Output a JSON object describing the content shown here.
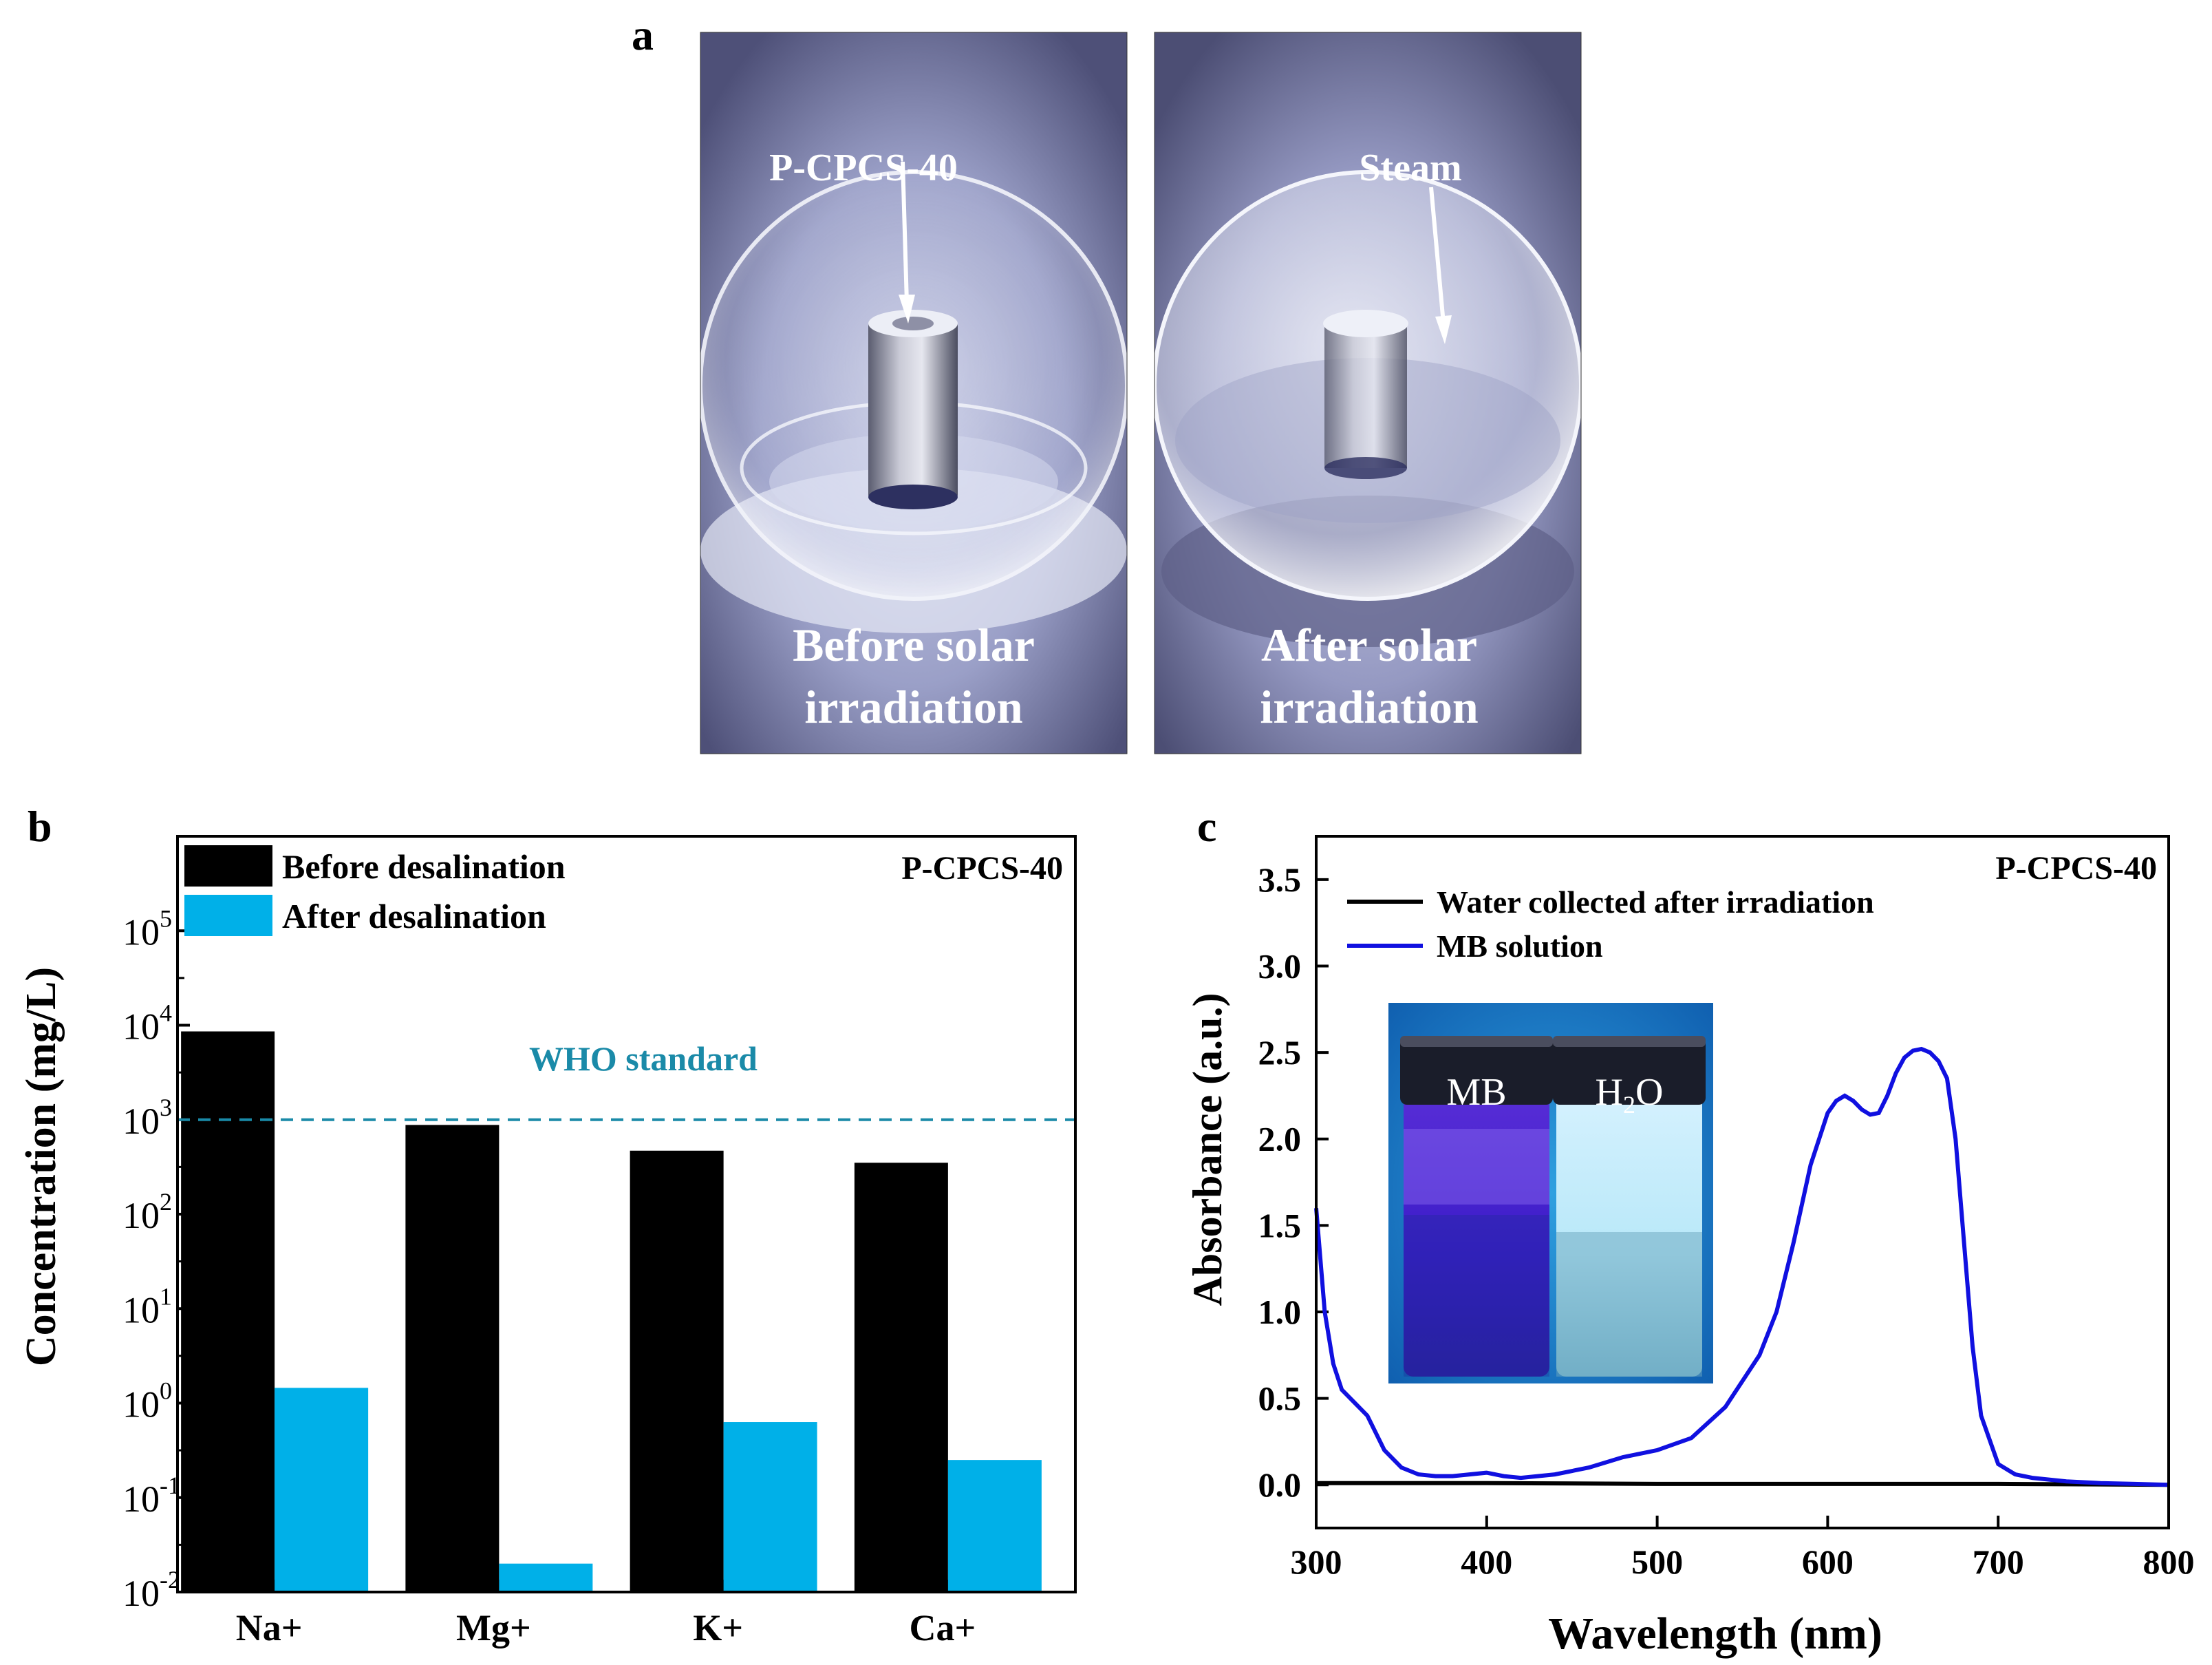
{
  "panels": {
    "a": {
      "letter": "a",
      "left_photo": {
        "label": "P-CPCS-40",
        "caption_line1": "Before solar",
        "caption_line2": "irradiation"
      },
      "right_photo": {
        "label": "Steam",
        "caption_line1": "After solar",
        "caption_line2": "irradiation"
      }
    },
    "b": {
      "letter": "b"
    },
    "c": {
      "letter": "c",
      "inset": {
        "left_label": "MB",
        "right_label_main": "H",
        "right_label_sub": "2",
        "right_label_tail": "O"
      }
    }
  },
  "chart_data": [
    {
      "type": "bar",
      "panel": "b",
      "title": "P-CPCS-40",
      "ylabel": "Concentration (mg/L)",
      "xlabel": "",
      "yscale": "log",
      "ylim": [
        0.01,
        1000000
      ],
      "categories": [
        "Na+",
        "Mg+",
        "K+",
        "Ca+"
      ],
      "series": [
        {
          "name": "Before desalination",
          "color": "#000000",
          "values": [
            8600,
            880,
            470,
            350
          ]
        },
        {
          "name": "After desalination",
          "color": "#00b0e8",
          "values": [
            1.45,
            0.02,
            0.63,
            0.25
          ]
        }
      ],
      "y_ticks": [
        {
          "base": "10",
          "exp": "-2",
          "value": 0.01
        },
        {
          "base": "10",
          "exp": "-1",
          "value": 0.1
        },
        {
          "base": "10",
          "exp": "0",
          "value": 1
        },
        {
          "base": "10",
          "exp": "1",
          "value": 10
        },
        {
          "base": "10",
          "exp": "2",
          "value": 100
        },
        {
          "base": "10",
          "exp": "3",
          "value": 1000
        },
        {
          "base": "10",
          "exp": "4",
          "value": 10000
        },
        {
          "base": "10",
          "exp": "5",
          "value": 100000
        }
      ],
      "reference_line": {
        "label": "WHO standard",
        "value": 1000,
        "color": "#1a8aa8"
      },
      "legend_position": "top-left"
    },
    {
      "type": "line",
      "panel": "c",
      "title": "P-CPCS-40",
      "xlabel": "Wavelength (nm)",
      "ylabel": "Absorbance (a.u.)",
      "xlim": [
        300,
        800
      ],
      "ylim": [
        -0.25,
        3.75
      ],
      "x_ticks": [
        "300",
        "400",
        "500",
        "600",
        "700",
        "800"
      ],
      "y_ticks": [
        "0.0",
        "0.5",
        "1.0",
        "1.5",
        "2.0",
        "2.5",
        "3.0",
        "3.5"
      ],
      "legend_position": "top-left",
      "series": [
        {
          "name": "Water collected after irradiation",
          "color": "#000000",
          "x": [
            300,
            400,
            500,
            600,
            700,
            800
          ],
          "y": [
            0.01,
            0.01,
            0.005,
            0.005,
            0.005,
            0.0
          ]
        },
        {
          "name": "MB solution",
          "color": "#1010e0",
          "x": [
            300,
            305,
            310,
            315,
            320,
            330,
            340,
            350,
            360,
            370,
            380,
            390,
            400,
            410,
            420,
            440,
            460,
            480,
            500,
            520,
            540,
            560,
            570,
            580,
            590,
            600,
            605,
            610,
            615,
            620,
            625,
            630,
            635,
            640,
            645,
            650,
            655,
            660,
            665,
            670,
            675,
            680,
            685,
            690,
            700,
            710,
            720,
            740,
            760,
            780,
            800
          ],
          "y": [
            1.6,
            1.0,
            0.7,
            0.55,
            0.5,
            0.4,
            0.2,
            0.1,
            0.06,
            0.05,
            0.05,
            0.06,
            0.07,
            0.05,
            0.04,
            0.06,
            0.1,
            0.16,
            0.2,
            0.27,
            0.45,
            0.75,
            1.0,
            1.4,
            1.85,
            2.15,
            2.22,
            2.25,
            2.22,
            2.17,
            2.14,
            2.15,
            2.25,
            2.38,
            2.47,
            2.51,
            2.52,
            2.5,
            2.45,
            2.35,
            2.0,
            1.4,
            0.8,
            0.4,
            0.12,
            0.06,
            0.04,
            0.02,
            0.01,
            0.005,
            0.0
          ]
        }
      ]
    }
  ]
}
